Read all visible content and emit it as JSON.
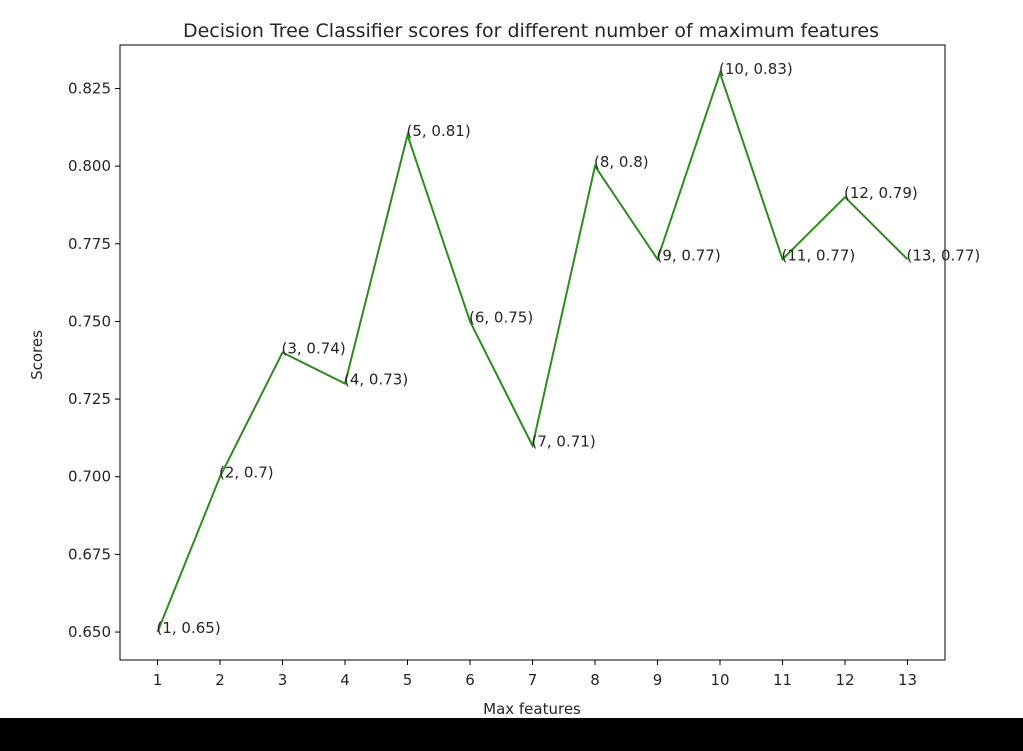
{
  "chart_data": {
    "type": "line",
    "title": "Decision Tree Classifier scores for different number of maximum features",
    "xlabel": "Max features",
    "ylabel": "Scores",
    "x": [
      1,
      2,
      3,
      4,
      5,
      6,
      7,
      8,
      9,
      10,
      11,
      12,
      13
    ],
    "series": [
      {
        "values": [
          0.65,
          0.7,
          0.74,
          0.73,
          0.81,
          0.75,
          0.71,
          0.8,
          0.77,
          0.83,
          0.77,
          0.79,
          0.77
        ],
        "color": "#2e8b1e"
      }
    ],
    "point_labels": [
      "(1, 0.65)",
      "(2, 0.7)",
      "(3, 0.74)",
      "(4, 0.73)",
      "(5, 0.81)",
      "(6, 0.75)",
      "(7, 0.71)",
      "(8, 0.8)",
      "(9, 0.77)",
      "(10, 0.83)",
      "(11, 0.77)",
      "(12, 0.79)",
      "(13, 0.77)"
    ],
    "xticks": [
      "1",
      "2",
      "3",
      "4",
      "5",
      "6",
      "7",
      "8",
      "9",
      "10",
      "11",
      "12",
      "13"
    ],
    "yticks": [
      0.65,
      0.675,
      0.7,
      0.725,
      0.75,
      0.775,
      0.8,
      0.825
    ],
    "ytick_labels": [
      "0.650",
      "0.675",
      "0.700",
      "0.725",
      "0.750",
      "0.775",
      "0.800",
      "0.825"
    ],
    "xlim": [
      0.4,
      13.6
    ],
    "ylim": [
      0.641,
      0.839
    ],
    "grid": false,
    "legend": "none"
  }
}
